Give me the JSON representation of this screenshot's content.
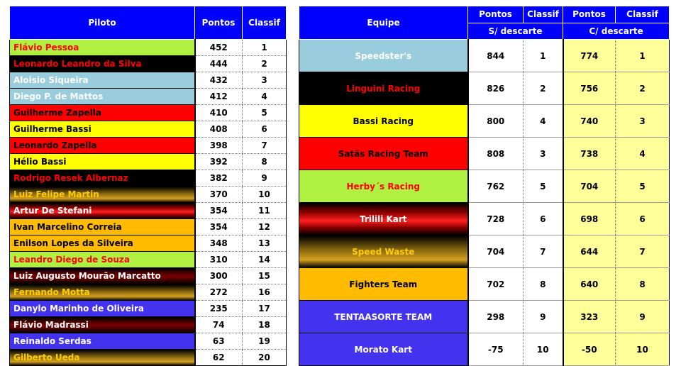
{
  "drivers_table": {
    "headers": {
      "piloto": "Piloto",
      "pontos": "Pontos",
      "classif": "Classif"
    },
    "rows": [
      {
        "name": "Flávio Pessoa",
        "points": "452",
        "rank": "1",
        "bg": "lime",
        "fg": "red"
      },
      {
        "name": "Leonardo Leandro da Silva",
        "points": "444",
        "rank": "2",
        "bg": "black",
        "fg": "red"
      },
      {
        "name": "Aloisio Siqueira",
        "points": "432",
        "rank": "3",
        "bg": "lblue",
        "fg": "white"
      },
      {
        "name": "Diego P. de Mattos",
        "points": "412",
        "rank": "4",
        "bg": "lblue",
        "fg": "white"
      },
      {
        "name": "Guilherme Zapella",
        "points": "410",
        "rank": "5",
        "bg": "red",
        "fg": "black"
      },
      {
        "name": "Guilherme Bassi",
        "points": "408",
        "rank": "6",
        "bg": "yellow",
        "fg": "black"
      },
      {
        "name": "Leonardo Zapella",
        "points": "398",
        "rank": "7",
        "bg": "red",
        "fg": "black"
      },
      {
        "name": "Hélio Bassi",
        "points": "392",
        "rank": "8",
        "bg": "yellow",
        "fg": "black"
      },
      {
        "name": "Rodrigo Resek Albernaz",
        "points": "382",
        "rank": "9",
        "bg": "black",
        "fg": "red"
      },
      {
        "name": "Luiz Felipe Martin",
        "points": "370",
        "rank": "10",
        "bg": "gold",
        "fg": "yellow"
      },
      {
        "name": "Artur De Stefani",
        "points": "354",
        "rank": "11",
        "bg": "redstripe",
        "fg": "white"
      },
      {
        "name": "Ivan Marcelino Correia",
        "points": "354",
        "rank": "12",
        "bg": "orange",
        "fg": "black"
      },
      {
        "name": "Enilson Lopes da Silveira",
        "points": "348",
        "rank": "13",
        "bg": "orange",
        "fg": "black"
      },
      {
        "name": "Leandro Diego de Souza",
        "points": "310",
        "rank": "14",
        "bg": "lime",
        "fg": "red"
      },
      {
        "name": "Luiz Augusto Mourão Marcatto",
        "points": "300",
        "rank": "15",
        "bg": "maroon",
        "fg": "white"
      },
      {
        "name": "Fernando Motta",
        "points": "272",
        "rank": "16",
        "bg": "gold",
        "fg": "yellow"
      },
      {
        "name": "Danylo Marinho de Oliveira",
        "points": "235",
        "rank": "17",
        "bg": "purple",
        "fg": "white"
      },
      {
        "name": "Flávio Madrassi",
        "points": "74",
        "rank": "18",
        "bg": "maroon",
        "fg": "white"
      },
      {
        "name": "Reinaldo Serdas",
        "points": "63",
        "rank": "19",
        "bg": "purple",
        "fg": "white"
      },
      {
        "name": "Gilberto Ueda",
        "points": "62",
        "rank": "20",
        "bg": "gold",
        "fg": "yellow"
      }
    ]
  },
  "teams_table": {
    "headers": {
      "equipe": "Equipe",
      "pontos1": "Pontos",
      "classif1": "Classif",
      "pontos2": "Pontos",
      "classif2": "Classif",
      "sem_descarte": "S/ descarte",
      "com_descarte": "C/ descarte"
    },
    "rows": [
      {
        "team": "Speedster's",
        "p1": "844",
        "c1": "1",
        "p2": "774",
        "c2": "1",
        "bg": "lblue",
        "fg": "white"
      },
      {
        "team": "Linguini Racing",
        "p1": "826",
        "c1": "2",
        "p2": "756",
        "c2": "2",
        "bg": "black",
        "fg": "red"
      },
      {
        "team": "Bassi Racing",
        "p1": "800",
        "c1": "4",
        "p2": "740",
        "c2": "3",
        "bg": "yellow",
        "fg": "black"
      },
      {
        "team": "Satãs Racing Team",
        "p1": "808",
        "c1": "3",
        "p2": "738",
        "c2": "4",
        "bg": "red",
        "fg": "black"
      },
      {
        "team": "Herby´s Racing",
        "p1": "762",
        "c1": "5",
        "p2": "704",
        "c2": "5",
        "bg": "lime",
        "fg": "red"
      },
      {
        "team": "Trilili Kart",
        "p1": "728",
        "c1": "6",
        "p2": "698",
        "c2": "6",
        "bg": "redstripe",
        "fg": "white"
      },
      {
        "team": "Speed Waste",
        "p1": "704",
        "c1": "7",
        "p2": "644",
        "c2": "7",
        "bg": "gold",
        "fg": "yellow"
      },
      {
        "team": "Fighters Team",
        "p1": "702",
        "c1": "8",
        "p2": "640",
        "c2": "8",
        "bg": "orange",
        "fg": "black"
      },
      {
        "team": "TENTAASORTE TEAM",
        "p1": "298",
        "c1": "9",
        "p2": "323",
        "c2": "9",
        "bg": "purple",
        "fg": "white"
      },
      {
        "team": "Morato Kart",
        "p1": "-75",
        "c1": "10",
        "p2": "-50",
        "c2": "10",
        "bg": "purple",
        "fg": "white"
      }
    ]
  }
}
